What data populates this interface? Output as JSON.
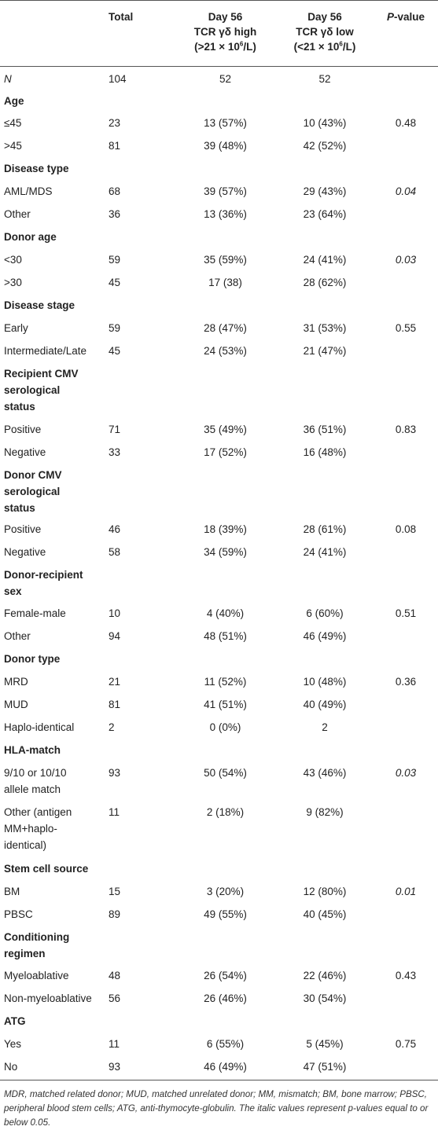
{
  "header": {
    "col0": "",
    "total": "Total",
    "high_l1": "Day 56",
    "high_l2": "TCR γδ high",
    "high_l3a": "(>21 × 10",
    "high_l3sup": "6",
    "high_l3b": "/L)",
    "low_l1": "Day 56",
    "low_l2": "TCR γδ low",
    "low_l3a": "(<21 × 10",
    "low_l3sup": "6",
    "low_l3b": "/L)",
    "pvalue_p": "P",
    "pvalue_rest": "-value"
  },
  "rows": [
    {
      "type": "data",
      "label": "N",
      "label_italic": true,
      "total": "104",
      "high": "52",
      "low": "52",
      "p": "",
      "h": 28
    },
    {
      "type": "section",
      "lines": [
        "Age"
      ],
      "h": 28
    },
    {
      "type": "data",
      "label": "≤45",
      "total": "23",
      "high": "13 (57%)",
      "low": "10 (43%)",
      "p": "0.48",
      "h": 29
    },
    {
      "type": "data",
      "label": ">45",
      "total": "81",
      "high": "39 (48%)",
      "low": "42 (52%)",
      "p": "",
      "h": 29
    },
    {
      "type": "section",
      "lines": [
        "Disease type"
      ],
      "h": 29
    },
    {
      "type": "data",
      "label": "AML/MDS",
      "total": "68",
      "high": "39 (57%)",
      "low": "29 (43%)",
      "p": "0.04",
      "p_italic": true,
      "h": 29
    },
    {
      "type": "data",
      "label": "Other",
      "total": "36",
      "high": "13 (36%)",
      "low": "23 (64%)",
      "p": "",
      "h": 29
    },
    {
      "type": "section",
      "lines": [
        "Donor age"
      ],
      "h": 29
    },
    {
      "type": "data",
      "label": "<30",
      "total": "59",
      "high": "35 (59%)",
      "low": "24 (41%)",
      "p": "0.03",
      "p_italic": true,
      "h": 29
    },
    {
      "type": "data",
      "label": ">30",
      "total": "45",
      "high": "17 (38)",
      "low": "28 (62%)",
      "p": "",
      "h": 29
    },
    {
      "type": "section",
      "lines": [
        "Disease stage"
      ],
      "h": 29
    },
    {
      "type": "data",
      "label": "Early",
      "total": "59",
      "high": "28 (47%)",
      "low": "31 (53%)",
      "p": "0.55",
      "h": 29
    },
    {
      "type": "data",
      "label": "Intermediate/Late",
      "total": "45",
      "high": "24 (53%)",
      "low": "21 (47%)",
      "p": "",
      "h": 29
    },
    {
      "type": "section",
      "lines": [
        "Recipient CMV",
        "serological",
        "status"
      ],
      "h": 71
    },
    {
      "type": "data",
      "label": "Positive",
      "total": "71",
      "high": "35 (49%)",
      "low": "36 (51%)",
      "p": "0.83",
      "h": 29
    },
    {
      "type": "data",
      "label": "Negative",
      "total": "33",
      "high": "17 (52%)",
      "low": "16 (48%)",
      "p": "",
      "h": 29
    },
    {
      "type": "section",
      "lines": [
        "Donor CMV",
        "serological",
        "status"
      ],
      "h": 69
    },
    {
      "type": "data",
      "label": "Positive",
      "total": "46",
      "high": "18 (39%)",
      "low": "28 (61%)",
      "p": "0.08",
      "h": 29
    },
    {
      "type": "data",
      "label": "Negative",
      "total": "58",
      "high": "34 (59%)",
      "low": "24 (41%)",
      "p": "",
      "h": 29
    },
    {
      "type": "section",
      "lines": [
        "Donor-recipient",
        "sex"
      ],
      "h": 49
    },
    {
      "type": "data",
      "label": "Female-male",
      "total": "10",
      "high": "4 (40%)",
      "low": "6 (60%)",
      "p": "0.51",
      "h": 29
    },
    {
      "type": "data",
      "label": "Other",
      "total": "94",
      "high": "48 (51%)",
      "low": "46 (49%)",
      "p": "",
      "h": 29
    },
    {
      "type": "section",
      "lines": [
        "Donor type"
      ],
      "h": 29
    },
    {
      "type": "data",
      "label": "MRD",
      "total": "21",
      "high": "11 (52%)",
      "low": "10 (48%)",
      "p": "0.36",
      "h": 29
    },
    {
      "type": "data",
      "label": "MUD",
      "total": "81",
      "high": "41 (51%)",
      "low": "40 (49%)",
      "p": "",
      "h": 29
    },
    {
      "type": "data",
      "label": "Haplo-identical",
      "total": "2",
      "high": "0 (0%)",
      "low": "2",
      "p": "",
      "h": 29
    },
    {
      "type": "section",
      "lines": [
        "HLA-match"
      ],
      "h": 29
    },
    {
      "type": "data",
      "label": "9/10 or 10/10 allele match",
      "label_lines": [
        "9/10 or 10/10",
        "allele match"
      ],
      "total": "93",
      "high": "50 (54%)",
      "low": "43 (46%)",
      "p": "0.03",
      "p_italic": true,
      "h": 50
    },
    {
      "type": "data",
      "label": "Other (antigen MM+haplo-identical)",
      "label_lines": [
        "Other (antigen",
        "MM+haplo-",
        "identical)"
      ],
      "total": "11",
      "high": "2 (18%)",
      "low": "9 (82%)",
      "p": "",
      "h": 72
    },
    {
      "type": "section",
      "lines": [
        "Stem cell source"
      ],
      "h": 29
    },
    {
      "type": "data",
      "label": "BM",
      "total": "15",
      "high": "3 (20%)",
      "low": "12 (80%)",
      "p": "0.01",
      "p_italic": true,
      "h": 29
    },
    {
      "type": "data",
      "label": "PBSC",
      "total": "89",
      "high": "49 (55%)",
      "low": "40 (45%)",
      "p": "",
      "h": 29
    },
    {
      "type": "section",
      "lines": [
        "Conditioning",
        "regimen"
      ],
      "h": 49
    },
    {
      "type": "data",
      "label": "Myeloablative",
      "total": "48",
      "high": "26 (54%)",
      "low": "22 (46%)",
      "p": "0.43",
      "h": 29
    },
    {
      "type": "data",
      "label": "Non-myeloablative",
      "total": "56",
      "high": "26 (46%)",
      "low": "30 (54%)",
      "p": "",
      "h": 29
    },
    {
      "type": "section",
      "lines": [
        "ATG"
      ],
      "h": 29
    },
    {
      "type": "data",
      "label": "Yes",
      "total": "11",
      "high": "6 (55%)",
      "low": "5 (45%)",
      "p": "0.75",
      "h": 29
    },
    {
      "type": "data",
      "label": "No",
      "total": "93",
      "high": "46 (49%)",
      "low": "47 (51%)",
      "p": "",
      "h": 29
    }
  ],
  "footnote": "MDR, matched related donor; MUD, matched unrelated donor; MM, mismatch; BM, bone marrow; PBSC, peripheral blood stem cells; ATG, anti-thymocyte-globulin. The italic values represent p-values equal to or below 0.05."
}
